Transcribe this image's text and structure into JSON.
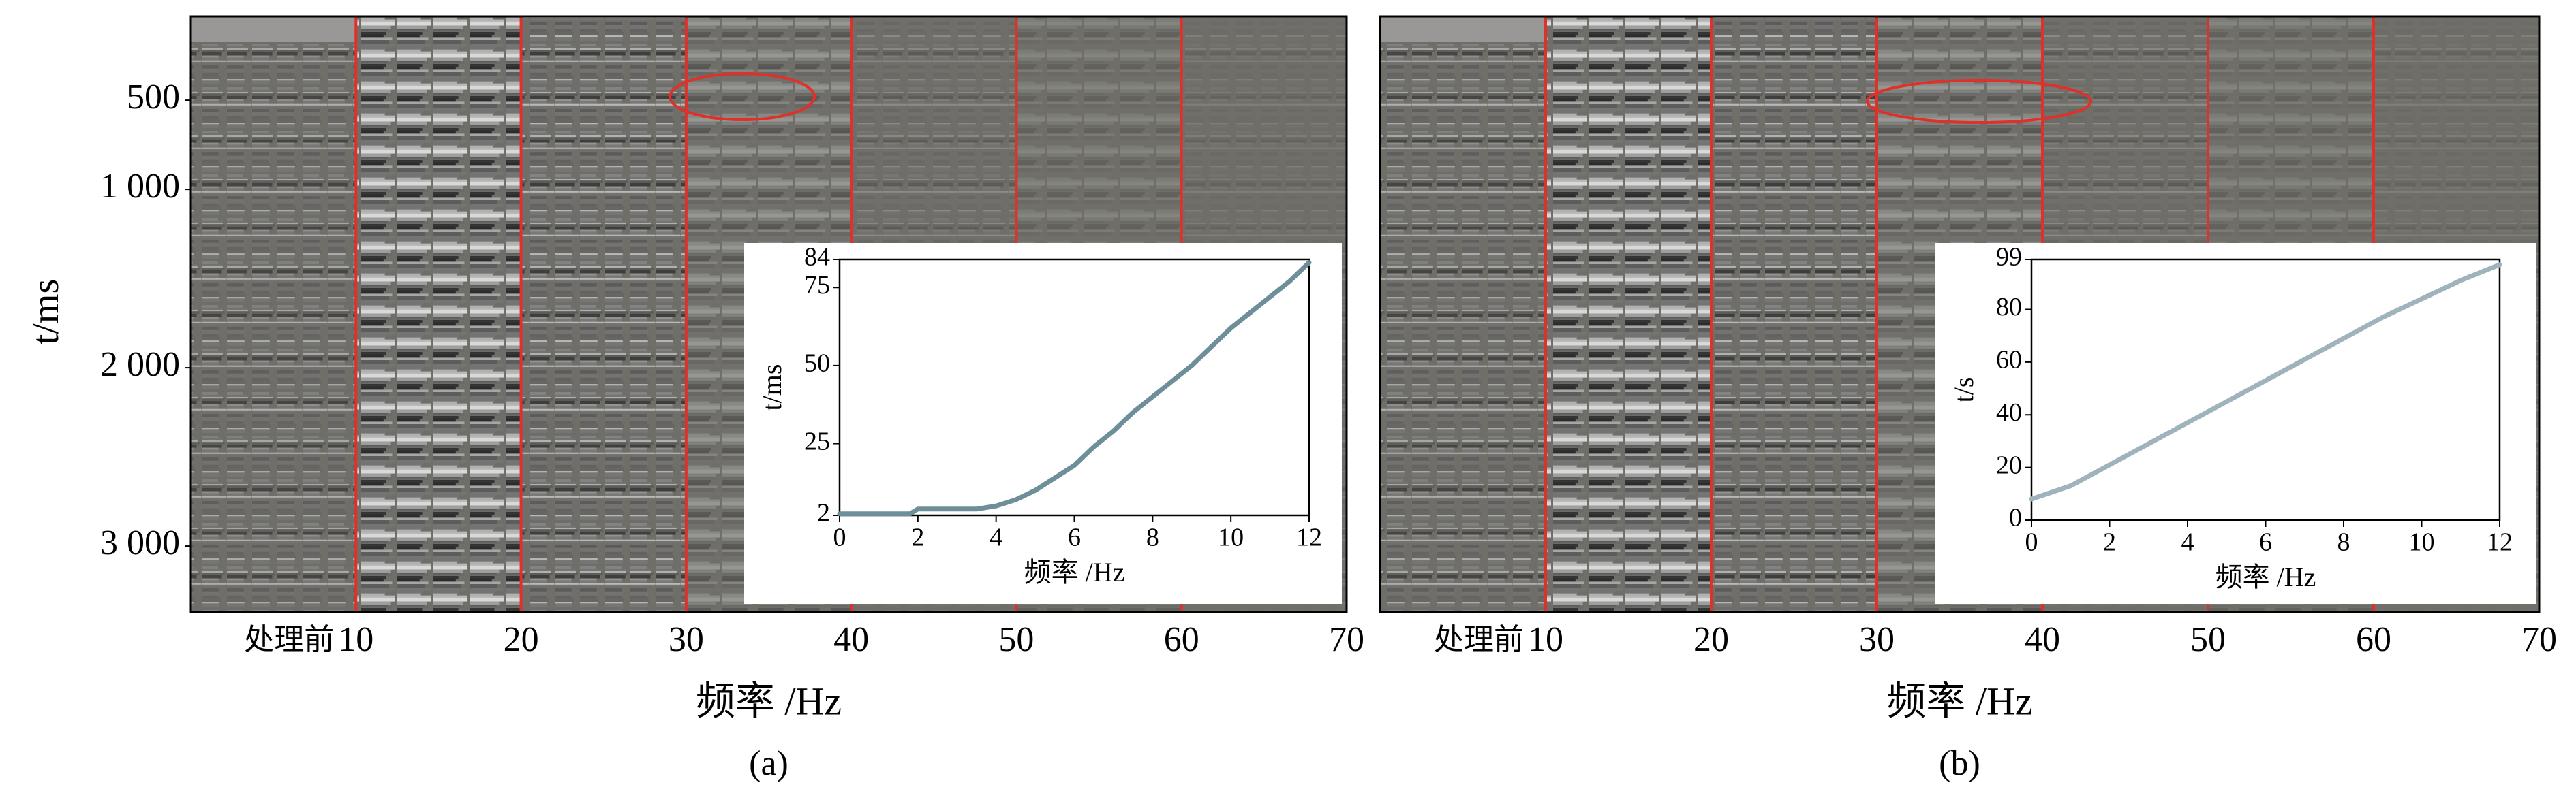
{
  "chart_data": [
    {
      "type": "seismic",
      "ylabel": "t/ms",
      "xlabel": "频率 /Hz",
      "caption": "(a)",
      "first_band_label": "处理前",
      "xlim": [
        0,
        70
      ],
      "xticks": [
        10,
        20,
        30,
        40,
        50,
        60,
        70
      ],
      "ylim": [
        3370,
        30
      ],
      "yticks": [
        500,
        {
          "value": 1000,
          "label": "1 000"
        },
        {
          "value": 2000,
          "label": "2 000"
        },
        {
          "value": 3000,
          "label": "3 000"
        }
      ]
    },
    {
      "type": "line",
      "ylabel": "t/ms",
      "xlabel": "频率 /Hz",
      "xlim": [
        0,
        12
      ],
      "xticks": [
        0,
        2,
        4,
        6,
        8,
        10,
        12
      ],
      "ylim": [
        2,
        84
      ],
      "yticks": [
        2,
        25,
        50,
        75,
        84
      ],
      "color": "#6e8f99",
      "x": [
        0,
        0.5,
        1,
        1.5,
        1.8,
        2,
        2.5,
        3,
        3.5,
        4,
        4.5,
        5,
        5.5,
        6,
        6.5,
        7,
        7.5,
        8,
        8.5,
        9,
        9.5,
        10,
        10.5,
        11,
        11.5,
        12
      ],
      "values": [
        2.5,
        2.5,
        2.5,
        2.5,
        2.5,
        4,
        4,
        4,
        4,
        5,
        7,
        10,
        14,
        18,
        24,
        29,
        35,
        40,
        45,
        50,
        56,
        62,
        67,
        72,
        77,
        83
      ]
    },
    {
      "type": "seismic",
      "ylabel": "",
      "xlabel": "频率 /Hz",
      "caption": "(b)",
      "first_band_label": "处理前",
      "xlim": [
        0,
        70
      ],
      "xticks": [
        10,
        20,
        30,
        40,
        50,
        60,
        70
      ],
      "ylim": [
        3370,
        30
      ],
      "yticks": []
    },
    {
      "type": "line",
      "ylabel": "t/s",
      "xlabel": "频率 /Hz",
      "xlim": [
        0,
        12
      ],
      "xticks": [
        0,
        2,
        4,
        6,
        8,
        10,
        12
      ],
      "ylim": [
        0,
        99
      ],
      "yticks": [
        0,
        20,
        40,
        60,
        80,
        99
      ],
      "color": "#9fb3bd",
      "x": [
        0,
        1,
        2,
        3,
        4,
        5,
        6,
        7,
        8,
        9,
        10,
        11,
        12
      ],
      "values": [
        8,
        13,
        21,
        29,
        37,
        45,
        53,
        61,
        69,
        77,
        84,
        91,
        97
      ]
    }
  ]
}
